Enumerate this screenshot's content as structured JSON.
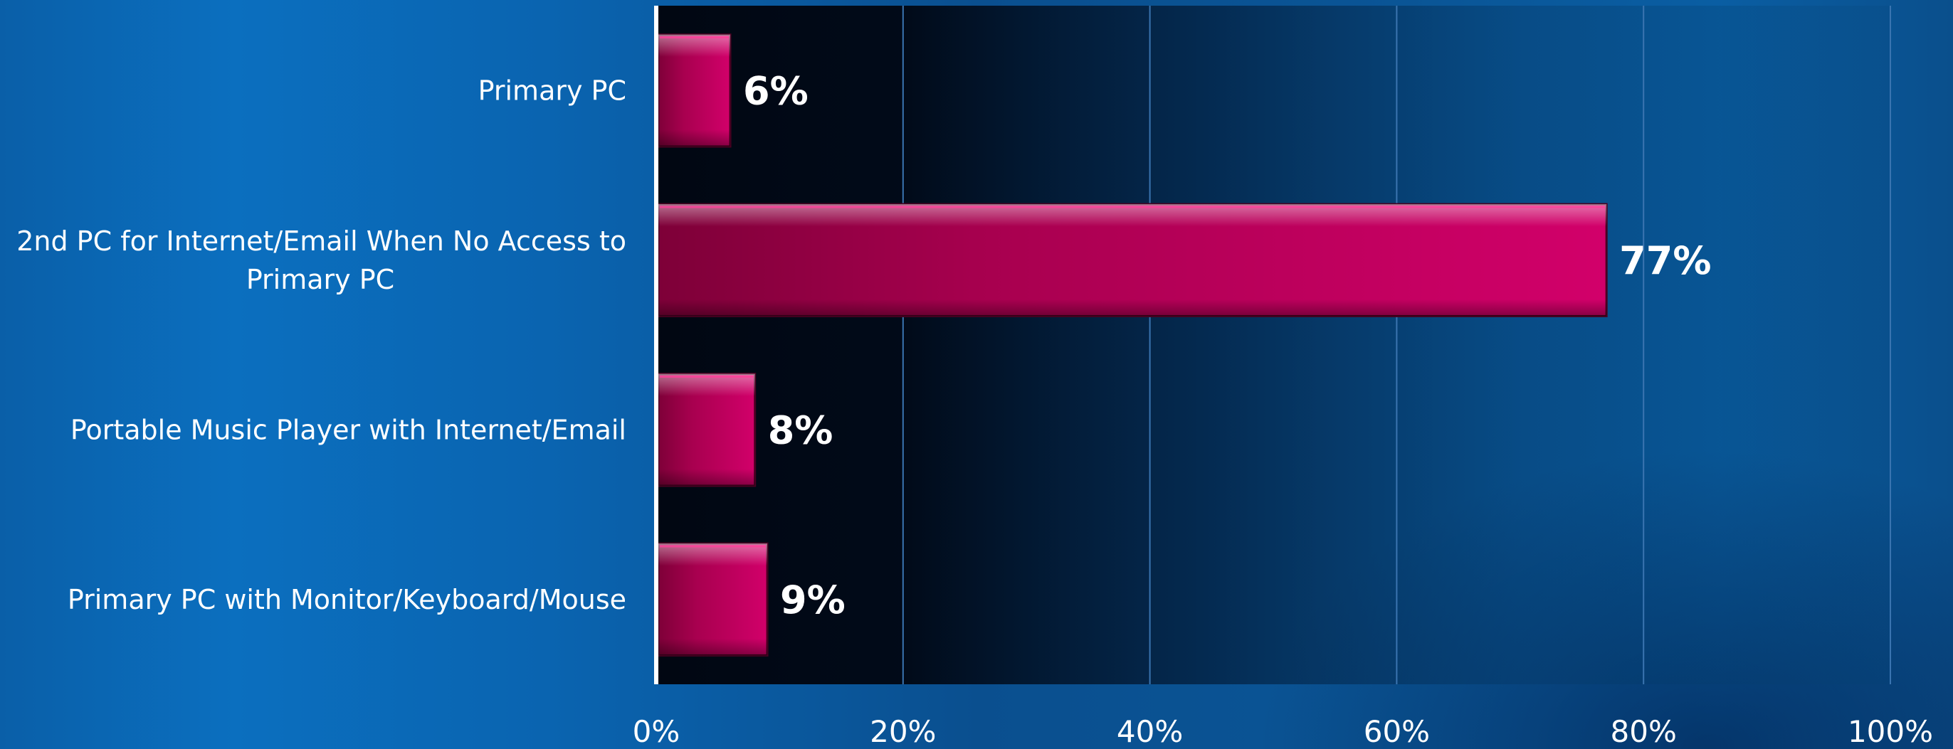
{
  "chart_data": {
    "type": "bar",
    "orientation": "horizontal",
    "title": "",
    "xlabel": "",
    "ylabel": "",
    "categories": [
      [
        "Primary PC"
      ],
      [
        "2nd PC for Internet/Email When No Access to",
        "Primary PC"
      ],
      [
        "Portable Music Player with Internet/Email"
      ],
      [
        "Primary PC with Monitor/Keyboard/Mouse"
      ]
    ],
    "values": [
      6,
      77,
      8,
      9
    ],
    "value_labels": [
      "6%",
      "77%",
      "8%",
      "9%"
    ],
    "xlim": [
      0,
      100
    ],
    "xticks": [
      0,
      20,
      40,
      60,
      80,
      100
    ],
    "xtick_labels": [
      "0%",
      "20%",
      "40%",
      "60%",
      "80%",
      "100%"
    ],
    "grid": "vertical",
    "legend": "none",
    "colors": {
      "bar": "#c8005f",
      "bar_dark": "#7a0038",
      "bar_light": "#ff3f9a",
      "plot_dark": "#000000",
      "grid": "#3a74b0",
      "axis": "#ffffff",
      "text": "#ffffff"
    }
  }
}
